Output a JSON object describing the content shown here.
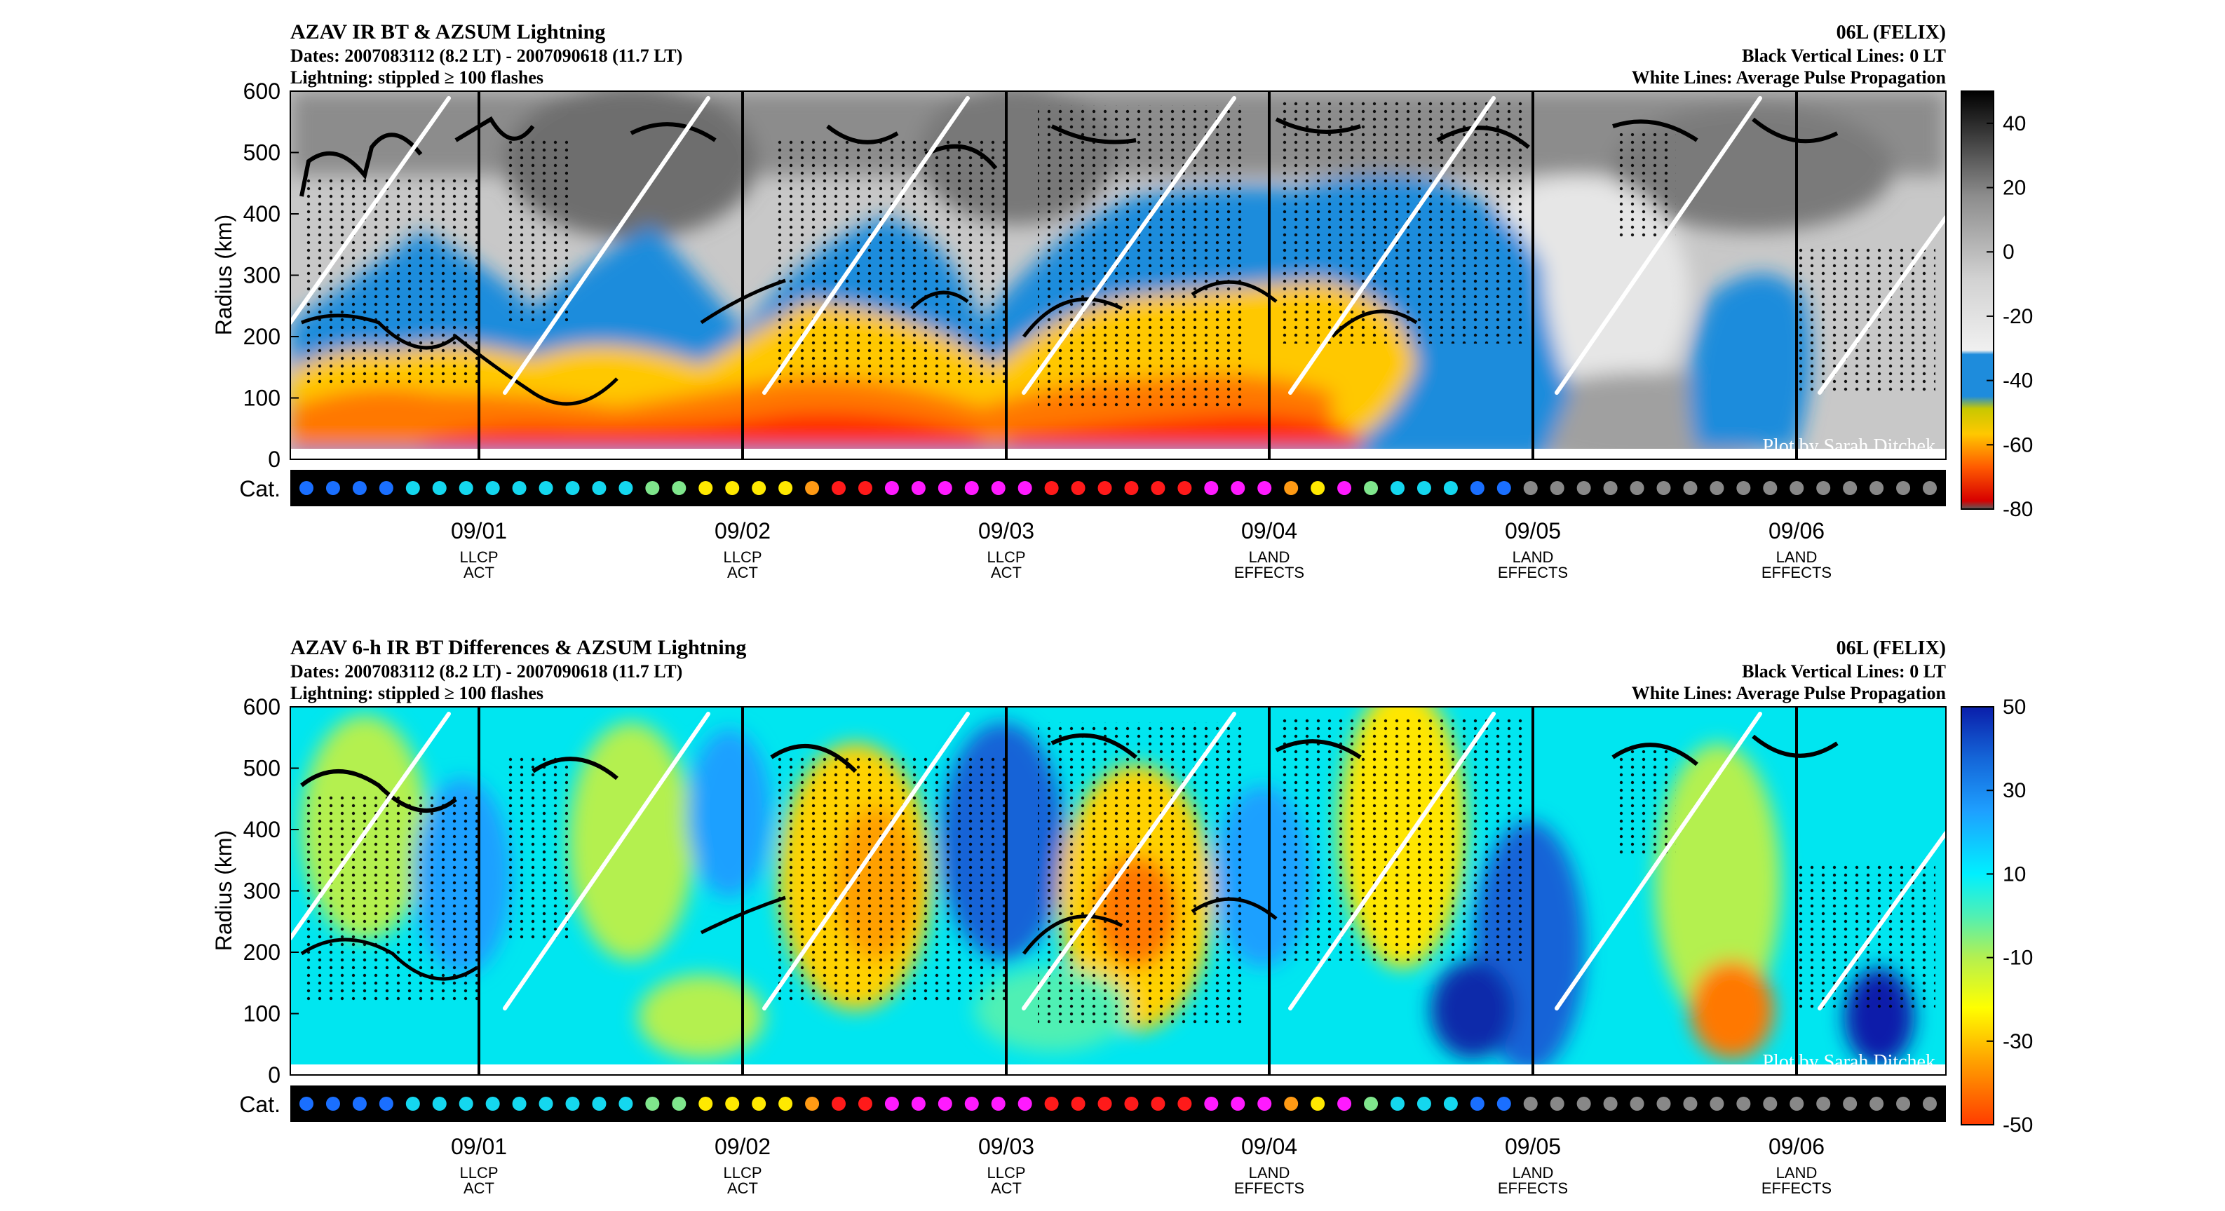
{
  "chart_data": [
    {
      "type": "heatmap",
      "title": "AZAV IR BT & AZSUM Lightning",
      "subtitle_lines": [
        "Dates: 2007083112 (8.2 LT) - 2007090618 (11.7 LT)",
        "Lightning: stippled ≥ 100 flashes"
      ],
      "right_title": "06L (FELIX)",
      "right_lines": [
        "Black Vertical Lines: 0 LT",
        "White Lines: Average Pulse Propagation"
      ],
      "ylabel": "Radius (km)",
      "ylim": [
        0,
        600
      ],
      "yticks": [
        0,
        100,
        200,
        300,
        400,
        500,
        600
      ],
      "colorbar": {
        "ticks": [
          40,
          20,
          0,
          -20,
          -40,
          -60,
          -80
        ],
        "range": [
          -80,
          50
        ]
      },
      "credit": "Plot by Sarah Ditchek",
      "category_label": "Cat."
    },
    {
      "type": "heatmap",
      "title": "AZAV 6-h IR BT Differences & AZSUM Lightning",
      "subtitle_lines": [
        "Dates: 2007083112 (8.2 LT) - 2007090618 (11.7 LT)",
        "Lightning: stippled ≥ 100 flashes"
      ],
      "right_title": "06L (FELIX)",
      "right_lines": [
        "Black Vertical Lines: 0 LT",
        "White Lines: Average Pulse Propagation"
      ],
      "ylabel": "Radius (km)",
      "ylim": [
        0,
        600
      ],
      "yticks": [
        0,
        100,
        200,
        300,
        400,
        500,
        600
      ],
      "colorbar": {
        "ticks": [
          50,
          30,
          10,
          -10,
          -30,
          -50
        ],
        "range": [
          -50,
          50
        ]
      },
      "credit": "Plot by Sarah Ditchek",
      "category_label": "Cat."
    }
  ],
  "dates": [
    {
      "date": "09/01",
      "line1": "LLCP",
      "line2": "ACT"
    },
    {
      "date": "09/02",
      "line1": "LLCP",
      "line2": "ACT"
    },
    {
      "date": "09/03",
      "line1": "LLCP",
      "line2": "ACT"
    },
    {
      "date": "09/04",
      "line1": "LAND",
      "line2": "EFFECTS"
    },
    {
      "date": "09/05",
      "line1": "LAND",
      "line2": "EFFECTS"
    },
    {
      "date": "09/06",
      "line1": "LAND",
      "line2": "EFFECTS"
    }
  ],
  "category_colors": [
    "#1a6fff",
    "#1a6fff",
    "#1a6fff",
    "#1a6fff",
    "#14d7ef",
    "#14d7ef",
    "#14d7ef",
    "#14d7ef",
    "#14d7ef",
    "#14d7ef",
    "#14d7ef",
    "#14d7ef",
    "#14d7ef",
    "#7fe68c",
    "#7fe68c",
    "#ffe900",
    "#ffe900",
    "#ffe900",
    "#ffe900",
    "#ff9a14",
    "#ff1a1a",
    "#ff1a1a",
    "#ff1aff",
    "#ff1aff",
    "#ff1aff",
    "#ff1aff",
    "#ff1aff",
    "#ff1aff",
    "#ff1a1a",
    "#ff1a1a",
    "#ff1a1a",
    "#ff1a1a",
    "#ff1a1a",
    "#ff1a1a",
    "#ff1aff",
    "#ff1aff",
    "#ff1aff",
    "#ff9a14",
    "#ffe900",
    "#ff1aff",
    "#7fe68c",
    "#14d7ef",
    "#14d7ef",
    "#14d7ef",
    "#1a6fff",
    "#1a6fff",
    "#888888",
    "#888888",
    "#888888",
    "#888888",
    "#888888",
    "#888888",
    "#888888",
    "#888888",
    "#888888",
    "#888888",
    "#888888",
    "#888888",
    "#888888",
    "#888888",
    "#888888",
    "#888888"
  ],
  "colors": {
    "ir_scale": [
      "#5a5a5a",
      "#d70000",
      "#ff5a00",
      "#ffc800",
      "#c8c800",
      "#1e8cdc",
      "#f0f0f0",
      "#c8c8c8",
      "#8c8c8c",
      "#3c3c3c",
      "#000000"
    ],
    "diff_scale": [
      "#ff3c00",
      "#ffa000",
      "#ffff00",
      "#b4f050",
      "#50f0b4",
      "#00f0ff",
      "#1ea0ff",
      "#1464d7",
      "#0a1eaa"
    ]
  }
}
